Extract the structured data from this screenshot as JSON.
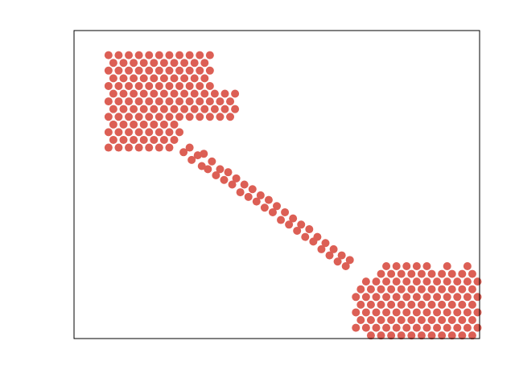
{
  "chart_data": {
    "type": "scatter",
    "color": "#dc5f55",
    "xlim": [
      0,
      100
    ],
    "ylim": [
      0,
      100
    ],
    "x": [
      8.5,
      11,
      13.5,
      16,
      18.5,
      21,
      23.5,
      26,
      28.5,
      31,
      33.5,
      9.7,
      12.2,
      14.7,
      17.2,
      19.7,
      22.2,
      24.7,
      27.2,
      29.7,
      32.2,
      8.5,
      11,
      13.5,
      16,
      18.5,
      21,
      23.5,
      26,
      28.5,
      31,
      33.5,
      9.7,
      12.2,
      14.7,
      17.2,
      19.7,
      22.2,
      24.7,
      27.2,
      29.7,
      32.2,
      8.5,
      11,
      13.5,
      16,
      18.5,
      21,
      23.5,
      26,
      28.5,
      31,
      33.5,
      9.7,
      12.2,
      14.7,
      17.2,
      19.7,
      22.2,
      24.7,
      27.2,
      29.7,
      32.2,
      34.7,
      37.2,
      39.7,
      8.5,
      11,
      13.5,
      16,
      18.5,
      21,
      23.5,
      26,
      28.5,
      31,
      33.5,
      36,
      38.5,
      9.7,
      12.2,
      14.7,
      17.2,
      19.7,
      22.2,
      24.7,
      27.2,
      29.7,
      32.2,
      34.7,
      37.2,
      39.7,
      8.5,
      11,
      13.5,
      16,
      18.5,
      21,
      23.5,
      26,
      28.5,
      31,
      33.5,
      36,
      38.5,
      9.7,
      12.2,
      14.7,
      17.2,
      19.7,
      22.2,
      24.7,
      8.5,
      11,
      13.5,
      16,
      18.5,
      21,
      23.5,
      26,
      9.7,
      12.2,
      14.7,
      17.2,
      19.7,
      22.2,
      24.7,
      8.5,
      11,
      13.5,
      16,
      18.5,
      21,
      23.5,
      27,
      28.5,
      29,
      30.5,
      31.5,
      32,
      33,
      34,
      35,
      36,
      37,
      38,
      39,
      40,
      41,
      42,
      43,
      44,
      45,
      46,
      47,
      48,
      49,
      50,
      51,
      52,
      53,
      54,
      55,
      56,
      57,
      58,
      59,
      60,
      61,
      62,
      63,
      64,
      65,
      66,
      67,
      68,
      73.2,
      75.7,
      78.2,
      80.7,
      83.2,
      85.7,
      88.2,
      90.7,
      93.2,
      95.7,
      98.2,
      69.5,
      72,
      74.5,
      77,
      79.5,
      82,
      84.5,
      87,
      89.5,
      92,
      94.5,
      97,
      99.5,
      70.7,
      73.2,
      75.7,
      78.2,
      80.7,
      83.2,
      85.7,
      88.2,
      90.7,
      93.2,
      95.7,
      98.2,
      69.5,
      72,
      74.5,
      77,
      79.5,
      82,
      84.5,
      87,
      89.5,
      92,
      94.5,
      97,
      99.5,
      70.7,
      73.2,
      75.7,
      78.2,
      80.7,
      83.2,
      85.7,
      88.2,
      90.7,
      93.2,
      95.7,
      98.2,
      69.5,
      72,
      74.5,
      77,
      79.5,
      82,
      84.5,
      87,
      89.5,
      92,
      94.5,
      97,
      99.5,
      70.7,
      73.2,
      75.7,
      78.2,
      80.7,
      83.2,
      85.7,
      88.2,
      90.7,
      93.2,
      95.7,
      98.2,
      72,
      74.5,
      77,
      79.5,
      82,
      84.5,
      87,
      89.5,
      92,
      94.5,
      97,
      99.5,
      75.7,
      78.2,
      80.7,
      83.2,
      85.7,
      88.2,
      90.7,
      93.2,
      95.7,
      98.2,
      77,
      79.5,
      82,
      84.5,
      87,
      92,
      97
    ],
    "values": [
      92,
      92,
      92,
      92,
      92,
      92,
      92,
      92,
      92,
      92,
      92,
      89.5,
      89.5,
      89.5,
      89.5,
      89.5,
      89.5,
      89.5,
      89.5,
      89.5,
      89.5,
      87,
      87,
      87,
      87,
      87,
      87,
      87,
      87,
      87,
      87,
      87,
      84.5,
      84.5,
      84.5,
      84.5,
      84.5,
      84.5,
      84.5,
      84.5,
      84.5,
      84.5,
      82,
      82,
      82,
      82,
      82,
      82,
      82,
      82,
      82,
      82,
      82,
      79.5,
      79.5,
      79.5,
      79.5,
      79.5,
      79.5,
      79.5,
      79.5,
      79.5,
      79.5,
      79.5,
      79.5,
      79.5,
      77,
      77,
      77,
      77,
      77,
      77,
      77,
      77,
      77,
      77,
      77,
      77,
      77,
      74.5,
      74.5,
      74.5,
      74.5,
      74.5,
      74.5,
      74.5,
      74.5,
      74.5,
      74.5,
      74.5,
      74.5,
      74.5,
      72,
      72,
      72,
      72,
      72,
      72,
      72,
      72,
      72,
      72,
      72,
      72,
      72,
      69.5,
      69.5,
      69.5,
      69.5,
      69.5,
      69.5,
      69.5,
      67,
      67,
      67,
      67,
      67,
      67,
      67,
      67,
      64.5,
      64.5,
      64.5,
      64.5,
      64.5,
      64.5,
      64.5,
      62,
      62,
      62,
      62,
      62,
      62,
      62,
      60.5,
      62,
      58,
      59.5,
      56,
      60,
      55,
      57.5,
      53,
      55,
      51.5,
      54,
      50,
      52,
      47.5,
      50,
      46,
      48.5,
      44.5,
      46.5,
      42.5,
      45,
      41,
      43,
      38.5,
      41,
      37,
      39,
      35,
      37,
      33,
      35.5,
      31.5,
      33,
      29,
      31,
      27,
      29,
      25,
      27,
      23.5,
      25.5,
      1,
      1,
      1,
      1,
      1,
      1,
      1,
      1,
      1,
      1,
      1,
      3.5,
      3.5,
      3.5,
      3.5,
      3.5,
      3.5,
      3.5,
      3.5,
      3.5,
      3.5,
      3.5,
      3.5,
      3.5,
      6,
      6,
      6,
      6,
      6,
      6,
      6,
      6,
      6,
      6,
      6,
      6,
      8.5,
      8.5,
      8.5,
      8.5,
      8.5,
      8.5,
      8.5,
      8.5,
      8.5,
      8.5,
      8.5,
      8.5,
      8.5,
      11,
      11,
      11,
      11,
      11,
      11,
      11,
      11,
      11,
      11,
      11,
      11,
      13.5,
      13.5,
      13.5,
      13.5,
      13.5,
      13.5,
      13.5,
      13.5,
      13.5,
      13.5,
      13.5,
      13.5,
      13.5,
      16,
      16,
      16,
      16,
      16,
      16,
      16,
      16,
      16,
      16,
      16,
      16,
      18.5,
      18.5,
      18.5,
      18.5,
      18.5,
      18.5,
      18.5,
      18.5,
      18.5,
      18.5,
      18.5,
      18.5,
      21,
      21,
      21,
      21,
      21,
      21,
      21,
      21,
      21,
      21,
      23.5,
      23.5,
      23.5,
      23.5,
      23.5,
      23.5,
      23.5
    ]
  }
}
